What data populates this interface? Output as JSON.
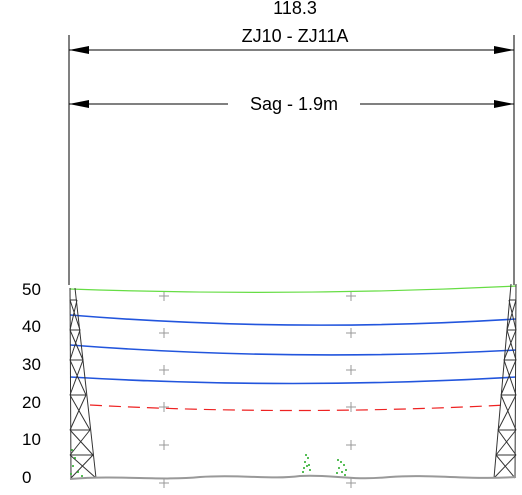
{
  "header": {
    "span_length": "118.3",
    "span_name": "ZJ10 - ZJ11A",
    "sag_label": "Sag - 1.9m"
  },
  "scale": {
    "ticks": [
      "50",
      "40",
      "30",
      "20",
      "10",
      "0"
    ]
  },
  "colors": {
    "ground_wire": "#66dd44",
    "conductor": "#2255dd",
    "clearance": "#ee2222",
    "tower": "#333333",
    "vegetation": "#22aa22",
    "ground": "#999999"
  }
}
